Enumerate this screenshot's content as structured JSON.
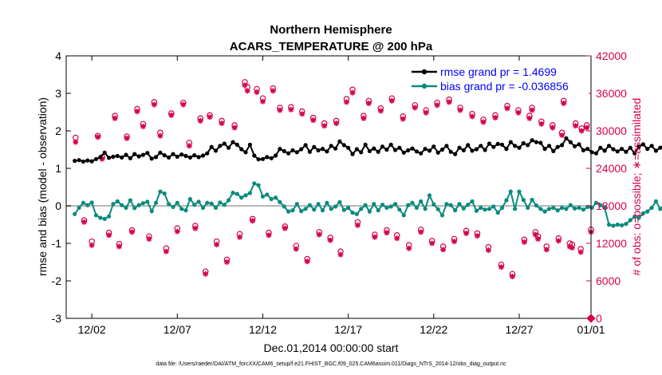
{
  "chart_data": {
    "type": "line",
    "title_line1": "Northern Hemisphere",
    "title_line2": "ACARS_TEMPERATURE @ 200 hPa",
    "xlabel": "Dec.01,2014 00:00:00 start",
    "ylabel_left": "rmse and bias (model - observation)",
    "ylabel_right": "# of obs: o=possible; ∗=assimilated",
    "footnote": "data file: /Users/raeder/DAI/ATM_forcXX/CAM6_setup/f.e21.FHIST_BGC.f09_025.CAM6assim.011/Diags_NTrS_2014-12/obs_diag_output.nc",
    "x_range": [
      0.5,
      31.2
    ],
    "ylim_left": [
      -3,
      4
    ],
    "ylim_right": [
      0,
      42000
    ],
    "x_ticks": [
      {
        "x": 2,
        "label": "12/02"
      },
      {
        "x": 7,
        "label": "12/07"
      },
      {
        "x": 12,
        "label": "12/12"
      },
      {
        "x": 17,
        "label": "12/17"
      },
      {
        "x": 22,
        "label": "12/22"
      },
      {
        "x": 27,
        "label": "12/27"
      },
      {
        "x": 32,
        "label": "01/01"
      }
    ],
    "y_ticks_left": [
      {
        "v": -3,
        "label": "-3"
      },
      {
        "v": -2,
        "label": "-2"
      },
      {
        "v": -1,
        "label": "-1"
      },
      {
        "v": 0,
        "label": "0"
      },
      {
        "v": 1,
        "label": "1"
      },
      {
        "v": 2,
        "label": "2"
      },
      {
        "v": 3,
        "label": "3"
      },
      {
        "v": 4,
        "label": "4"
      }
    ],
    "y_ticks_right": [
      {
        "v": 0,
        "label": "0"
      },
      {
        "v": 6000,
        "label": "6000"
      },
      {
        "v": 12000,
        "label": "12000"
      },
      {
        "v": 18000,
        "label": "18000"
      },
      {
        "v": 24000,
        "label": "24000"
      },
      {
        "v": 30000,
        "label": "30000"
      },
      {
        "v": 36000,
        "label": "36000"
      },
      {
        "v": 42000,
        "label": "42000"
      }
    ],
    "x_step_days": 0.25,
    "x_start": 1.0,
    "series": [
      {
        "name": "rmse",
        "legend": "rmse grand pr = 1.4699",
        "color": "#000000",
        "values": [
          1.2,
          1.22,
          1.18,
          1.21,
          1.19,
          1.25,
          1.3,
          1.42,
          1.28,
          1.31,
          1.33,
          1.29,
          1.36,
          1.27,
          1.38,
          1.32,
          1.36,
          1.41,
          1.26,
          1.3,
          1.42,
          1.35,
          1.29,
          1.38,
          1.31,
          1.37,
          1.33,
          1.29,
          1.35,
          1.3,
          1.34,
          1.4,
          1.57,
          1.47,
          1.6,
          1.66,
          1.55,
          1.7,
          1.63,
          1.51,
          1.43,
          1.63,
          1.34,
          1.24,
          1.25,
          1.3,
          1.27,
          1.34,
          1.52,
          1.46,
          1.4,
          1.48,
          1.43,
          1.51,
          1.62,
          1.44,
          1.57,
          1.48,
          1.52,
          1.45,
          1.6,
          1.53,
          1.72,
          1.62,
          1.55,
          1.38,
          1.51,
          1.43,
          1.63,
          1.46,
          1.53,
          1.44,
          1.58,
          1.5,
          1.63,
          1.49,
          1.55,
          1.42,
          1.48,
          1.53,
          1.45,
          1.4,
          1.52,
          1.47,
          1.58,
          1.42,
          1.5,
          1.6,
          1.44,
          1.38,
          1.55,
          1.48,
          1.62,
          1.47,
          1.51,
          1.6,
          1.49,
          1.66,
          1.57,
          1.65,
          1.63,
          1.52,
          1.7,
          1.6,
          1.55,
          1.67,
          1.62,
          1.75,
          1.7,
          1.68,
          1.52,
          1.6,
          1.46,
          1.57,
          1.62,
          1.8,
          1.7,
          1.59,
          1.64,
          1.48,
          1.52,
          1.43,
          1.4,
          1.55,
          1.47,
          1.6,
          1.51,
          1.45,
          1.52,
          1.44,
          1.55,
          1.4,
          1.58,
          1.64,
          1.52,
          1.6,
          1.47,
          1.55,
          1.63,
          1.52,
          1.67,
          1.58,
          1.72,
          1.6,
          1.77,
          1.62,
          1.8,
          1.52,
          1.62,
          1.89,
          1.96,
          2.07,
          1.83,
          2.06,
          1.7,
          1.78,
          1.65,
          1.75,
          1.95,
          1.86,
          1.65,
          1.57,
          1.45,
          1.6,
          1.44,
          1.52,
          1.6,
          1.48,
          1.38,
          1.5,
          1.56,
          1.42,
          1.54,
          1.48,
          1.6,
          1.52,
          1.45,
          1.55,
          1.49,
          1.62,
          1.47,
          1.5,
          1.6,
          1.52,
          1.65,
          1.48,
          1.55,
          1.42,
          1.58,
          1.48,
          1.62,
          1.53,
          1.47,
          1.72,
          1.35,
          1.52,
          1.42,
          1.38,
          1.45
        ]
      },
      {
        "name": "bias",
        "legend": "bias grand pr = -0.036856",
        "color": "#0a8a7e",
        "values": [
          -0.22,
          -0.05,
          0.08,
          0.02,
          0.09,
          -0.25,
          -0.32,
          -0.35,
          -0.28,
          0.05,
          0.12,
          0.02,
          -0.05,
          0.15,
          -0.06,
          0.02,
          0.07,
          0.11,
          -0.14,
          0.08,
          0.38,
          0.33,
          0.05,
          -0.03,
          0.08,
          -0.08,
          -0.12,
          0.18,
          0.03,
          0.11,
          -0.05,
          0.08,
          0.06,
          -0.05,
          0.09,
          0.03,
          0.15,
          0.35,
          0.32,
          0.22,
          0.28,
          0.34,
          0.6,
          0.55,
          0.25,
          0.3,
          0.18,
          0.22,
          0.1,
          -0.02,
          -0.15,
          -0.12,
          0.05,
          -0.14,
          -0.08,
          0.02,
          -0.1,
          0.05,
          -0.12,
          0.08,
          -0.08,
          -0.02,
          0.1,
          -0.11,
          -0.05,
          -0.18,
          -0.22,
          -0.08,
          0.02,
          -0.15,
          0.05,
          -0.12,
          0.03,
          -0.05,
          -0.02,
          0.05,
          -0.1,
          -0.25,
          0.02,
          0.08,
          -0.05,
          0.12,
          -0.08,
          0.28,
          0.04,
          -0.09,
          -0.25,
          0.05,
          0.02,
          -0.12,
          0.05,
          -0.07,
          0.03,
          0.12,
          -0.13,
          -0.05,
          -0.1,
          -0.08,
          -0.02,
          -0.18,
          -0.05,
          0.15,
          0.38,
          -0.08,
          0.38,
          0.16,
          -0.05,
          0.16,
          0.01,
          -0.08,
          -0.15,
          -0.08,
          -0.05,
          -0.12,
          -0.05,
          -0.08,
          0.02,
          -0.07,
          -0.05,
          -0.1,
          -0.03,
          -0.05,
          0.08,
          0.02,
          -0.05,
          -0.5,
          -0.53,
          -0.5,
          -0.52,
          -0.48,
          -0.38,
          -0.29,
          -0.32,
          -0.2,
          -0.15,
          -0.05,
          0.12,
          -0.08,
          0.05,
          0.38,
          0.24,
          0.33,
          0.11,
          0.32,
          0.2,
          0.05,
          -0.02,
          0.1,
          -0.15,
          0.12,
          0.05,
          0.16,
          -0.17,
          0.55,
          0.1,
          0.22,
          0.03,
          -0.16,
          0.05,
          -0.14,
          -0.12,
          0.28,
          0.34,
          -0.05,
          0.08,
          -0.08,
          -0.11,
          -0.15,
          0.02,
          -0.15,
          -0.02,
          -0.03,
          0.05,
          -0.08,
          0.02,
          -0.2,
          -0.25,
          -0.3,
          0.18,
          0.05,
          -0.08,
          0.02,
          0.11,
          0.05,
          0.02,
          0.1,
          -0.08,
          0.05,
          0.38,
          0.22,
          0.05,
          0.02,
          0.1,
          0.15,
          0.3,
          0.02,
          0.45,
          0.32,
          0.15,
          0.05,
          0.08,
          0.22,
          0.02,
          -0.04,
          0.18,
          -0.12,
          0.2,
          0.22,
          0.28
        ]
      }
    ],
    "obs_possible": {
      "color": "#d6004e",
      "values": [
        28900,
        15700,
        12300,
        29200,
        25800,
        13700,
        32400,
        11900,
        29100,
        14100,
        33500,
        31100,
        13100,
        34600,
        29700,
        11200,
        32800,
        14400,
        34500,
        28100,
        14800,
        32000,
        7500,
        32500,
        12300,
        31600,
        9400,
        30900,
        13500,
        37800,
        37000,
        15900,
        36700,
        35200,
        13700,
        36800,
        33700,
        14700,
        33800,
        11600,
        33100,
        9500,
        32100,
        13800,
        31200,
        12900,
        31600,
        10700,
        35100,
        36600,
        15400,
        32400,
        34800,
        13400,
        33600,
        14100,
        35200,
        13300,
        32300,
        11700,
        34100,
        14200,
        33300,
        12400,
        34500,
        11500,
        35000,
        12700,
        33700,
        14000,
        32700,
        13600,
        31800,
        11400,
        32500,
        8600,
        34000,
        7100,
        33300,
        12600,
        32400,
        13800,
        31500,
        11500,
        30900,
        12800,
        34800,
        12000,
        31200,
        11100,
        30900,
        14200,
        30400,
        11800,
        29700,
        13100,
        33700
      ],
      "x": [
        1.05,
        1.55,
        2.0,
        2.35,
        2.6,
        3.0,
        3.35,
        3.6,
        4.05,
        4.35,
        4.65,
        5.0,
        5.35,
        5.65,
        6.0,
        6.35,
        6.65,
        7.0,
        7.35,
        7.7,
        8.05,
        8.35,
        8.65,
        8.9,
        9.3,
        9.6,
        9.9,
        10.35,
        10.65,
        10.95,
        11.1,
        11.4,
        11.65,
        12.0,
        12.35,
        12.6,
        13.0,
        13.3,
        13.65,
        13.95,
        14.3,
        14.6,
        14.95,
        15.3,
        15.6,
        15.95,
        16.3,
        16.55,
        16.9,
        17.25,
        17.55,
        17.9,
        18.2,
        18.55,
        18.9,
        19.25,
        19.55,
        19.85,
        20.2,
        20.55,
        20.9,
        21.25,
        21.55,
        21.9,
        22.2,
        22.55,
        22.9,
        23.2,
        23.55,
        23.9,
        24.25,
        24.55,
        24.9,
        25.2,
        25.6,
        25.95,
        26.3,
        26.6,
        26.95,
        27.3,
        27.6,
        27.95,
        28.3,
        28.6,
        28.95,
        29.3,
        29.6,
        29.95,
        30.3,
        30.6,
        30.95,
        31.2,
        30.65,
        30.1,
        29.5,
        28.1,
        27.75
      ]
    },
    "obs_assimilated": {
      "color": "#d6004e",
      "values": [
        28200,
        15400,
        11700,
        29000,
        25500,
        13300,
        32000,
        11500,
        28800,
        13800,
        33100,
        30700,
        12700,
        34200,
        29200,
        10700,
        32500,
        13900,
        34200,
        27600,
        14400,
        31600,
        7100,
        32200,
        11800,
        31200,
        9000,
        30500,
        13000,
        37300,
        36400,
        15600,
        36200,
        34700,
        13300,
        36400,
        33300,
        14400,
        33400,
        11100,
        32700,
        9100,
        31700,
        13400,
        30800,
        12500,
        31200,
        10200,
        34600,
        36100,
        14900,
        32000,
        34400,
        13000,
        33200,
        13700,
        34800,
        12800,
        31900,
        11200,
        33700,
        13800,
        32900,
        12000,
        34100,
        11000,
        34600,
        12300,
        33300,
        13600,
        32300,
        13200,
        31400,
        10900,
        32100,
        8200,
        33600,
        6700,
        32900,
        12200,
        32000,
        13400,
        31100,
        11000,
        30500,
        12400,
        34400,
        11500,
        30800,
        10600,
        30500,
        13800,
        30000,
        11300,
        29300,
        12700,
        33300
      ]
    },
    "legend_position": "top-right",
    "baseline": 0
  }
}
